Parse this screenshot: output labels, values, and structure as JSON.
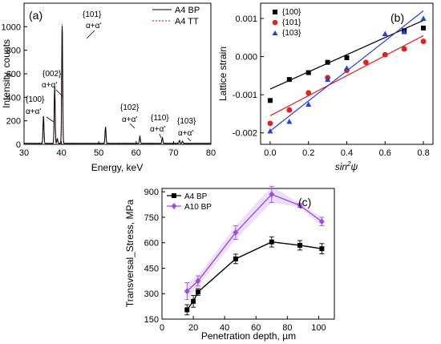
{
  "chart_data": [
    {
      "type": "line",
      "panel_label": "(a)",
      "xlabel": "Energy, keV",
      "ylabel": "Intensity, counts",
      "xlim": [
        30,
        80
      ],
      "ylim": [
        0,
        1200
      ],
      "xticks": [
        30,
        40,
        50,
        60,
        70,
        80
      ],
      "yticks": [
        0,
        200,
        400,
        600,
        800,
        1000
      ],
      "legend_position": "top-right",
      "series": [
        {
          "name": "A4 BP",
          "style": "solid",
          "color": "#000000"
        },
        {
          "name": "A4 TT",
          "style": "dotted",
          "color": "#e00000"
        }
      ],
      "peaks": [
        {
          "x": 35.2,
          "y": 230
        },
        {
          "x": 38.2,
          "y": 480
        },
        {
          "x": 38.9,
          "y": 40
        },
        {
          "x": 40.2,
          "y": 1000
        },
        {
          "x": 51.8,
          "y": 140
        },
        {
          "x": 61.0,
          "y": 60
        },
        {
          "x": 67.0,
          "y": 50
        },
        {
          "x": 71.6,
          "y": 25
        },
        {
          "x": 72.4,
          "y": 20
        }
      ],
      "annotations": [
        {
          "hkl": "{100}",
          "phase": "α+α'"
        },
        {
          "hkl": "{002}",
          "phase": "α+α'"
        },
        {
          "hkl": "{101}",
          "phase": "α+α'"
        },
        {
          "hkl": "{102}",
          "phase": "α+α'"
        },
        {
          "hkl": "{110}",
          "phase": "α+α'"
        },
        {
          "hkl": "{103}",
          "phase": "α+α'"
        }
      ]
    },
    {
      "type": "scatter",
      "panel_label": "(b)",
      "xlabel_main": "sin",
      "xlabel_sup": "2",
      "xlabel_tail": "ψ",
      "ylabel": "Lattice strain",
      "xlim": [
        -0.05,
        0.85
      ],
      "ylim": [
        -0.0023,
        0.0014
      ],
      "xticks": [
        0.0,
        0.2,
        0.4,
        0.6,
        0.8
      ],
      "yticks": [
        0.001,
        0.0,
        -0.001,
        -0.002
      ],
      "ytick_labels": [
        "0.001",
        "0.000",
        "-0.001",
        "-0.002"
      ],
      "legend_position": "top-left",
      "series": [
        {
          "name": "{100}",
          "marker": "square",
          "color": "#000000",
          "x": [
            0.0,
            0.1,
            0.2,
            0.3,
            0.4,
            0.7,
            0.8
          ],
          "y": [
            -0.00115,
            -0.0006,
            -0.00042,
            -0.00015,
            -3e-05,
            0.00068,
            0.00075
          ],
          "fit": [
            [
              0.0,
              -0.00085
            ],
            [
              0.8,
              0.00095
            ]
          ]
        },
        {
          "name": "{101}",
          "marker": "circle",
          "color": "#e02020",
          "x": [
            0.0,
            0.1,
            0.2,
            0.3,
            0.4,
            0.5,
            0.6,
            0.7,
            0.8
          ],
          "y": [
            -0.00175,
            -0.0014,
            -0.00095,
            -0.00055,
            -0.00036,
            -0.00015,
            5e-05,
            0.0002,
            0.0004
          ],
          "fit": [
            [
              0.0,
              -0.00155
            ],
            [
              0.8,
              0.00055
            ]
          ]
        },
        {
          "name": "{103}",
          "marker": "triangle",
          "color": "#2040e0",
          "x": [
            0.0,
            0.1,
            0.2,
            0.3,
            0.4,
            0.6,
            0.7,
            0.8
          ],
          "y": [
            -0.00195,
            -0.0017,
            -0.00125,
            -0.0006,
            -0.0003,
            0.0006,
            0.00065,
            0.001
          ],
          "fit": [
            [
              0.0,
              -0.00195
            ],
            [
              0.8,
              0.0012
            ]
          ]
        }
      ]
    },
    {
      "type": "line",
      "panel_label": "(c)",
      "xlabel": "Penetration depth, µm",
      "ylabel": "Transversal_Stress, MPa",
      "xlim": [
        0,
        110
      ],
      "ylim": [
        150,
        920
      ],
      "xticks": [
        0,
        20,
        40,
        60,
        80,
        100
      ],
      "yticks": [
        150,
        300,
        450,
        600,
        750,
        900
      ],
      "legend_position": "top-left",
      "series": [
        {
          "name": "A4 BP",
          "color": "#000000",
          "marker": "square",
          "x": [
            16,
            20,
            23,
            47,
            70,
            88,
            102
          ],
          "y": [
            205,
            255,
            310,
            505,
            605,
            585,
            565
          ],
          "err": [
            30,
            35,
            20,
            28,
            30,
            28,
            30
          ]
        },
        {
          "name": "A10 BP",
          "color": "#9b4fe0",
          "marker": "diamond",
          "x": [
            16,
            23,
            47,
            70,
            88,
            102
          ],
          "y": [
            315,
            375,
            660,
            885,
            820,
            725
          ],
          "err": [
            50,
            30,
            40,
            48,
            12,
            25
          ]
        }
      ]
    }
  ]
}
